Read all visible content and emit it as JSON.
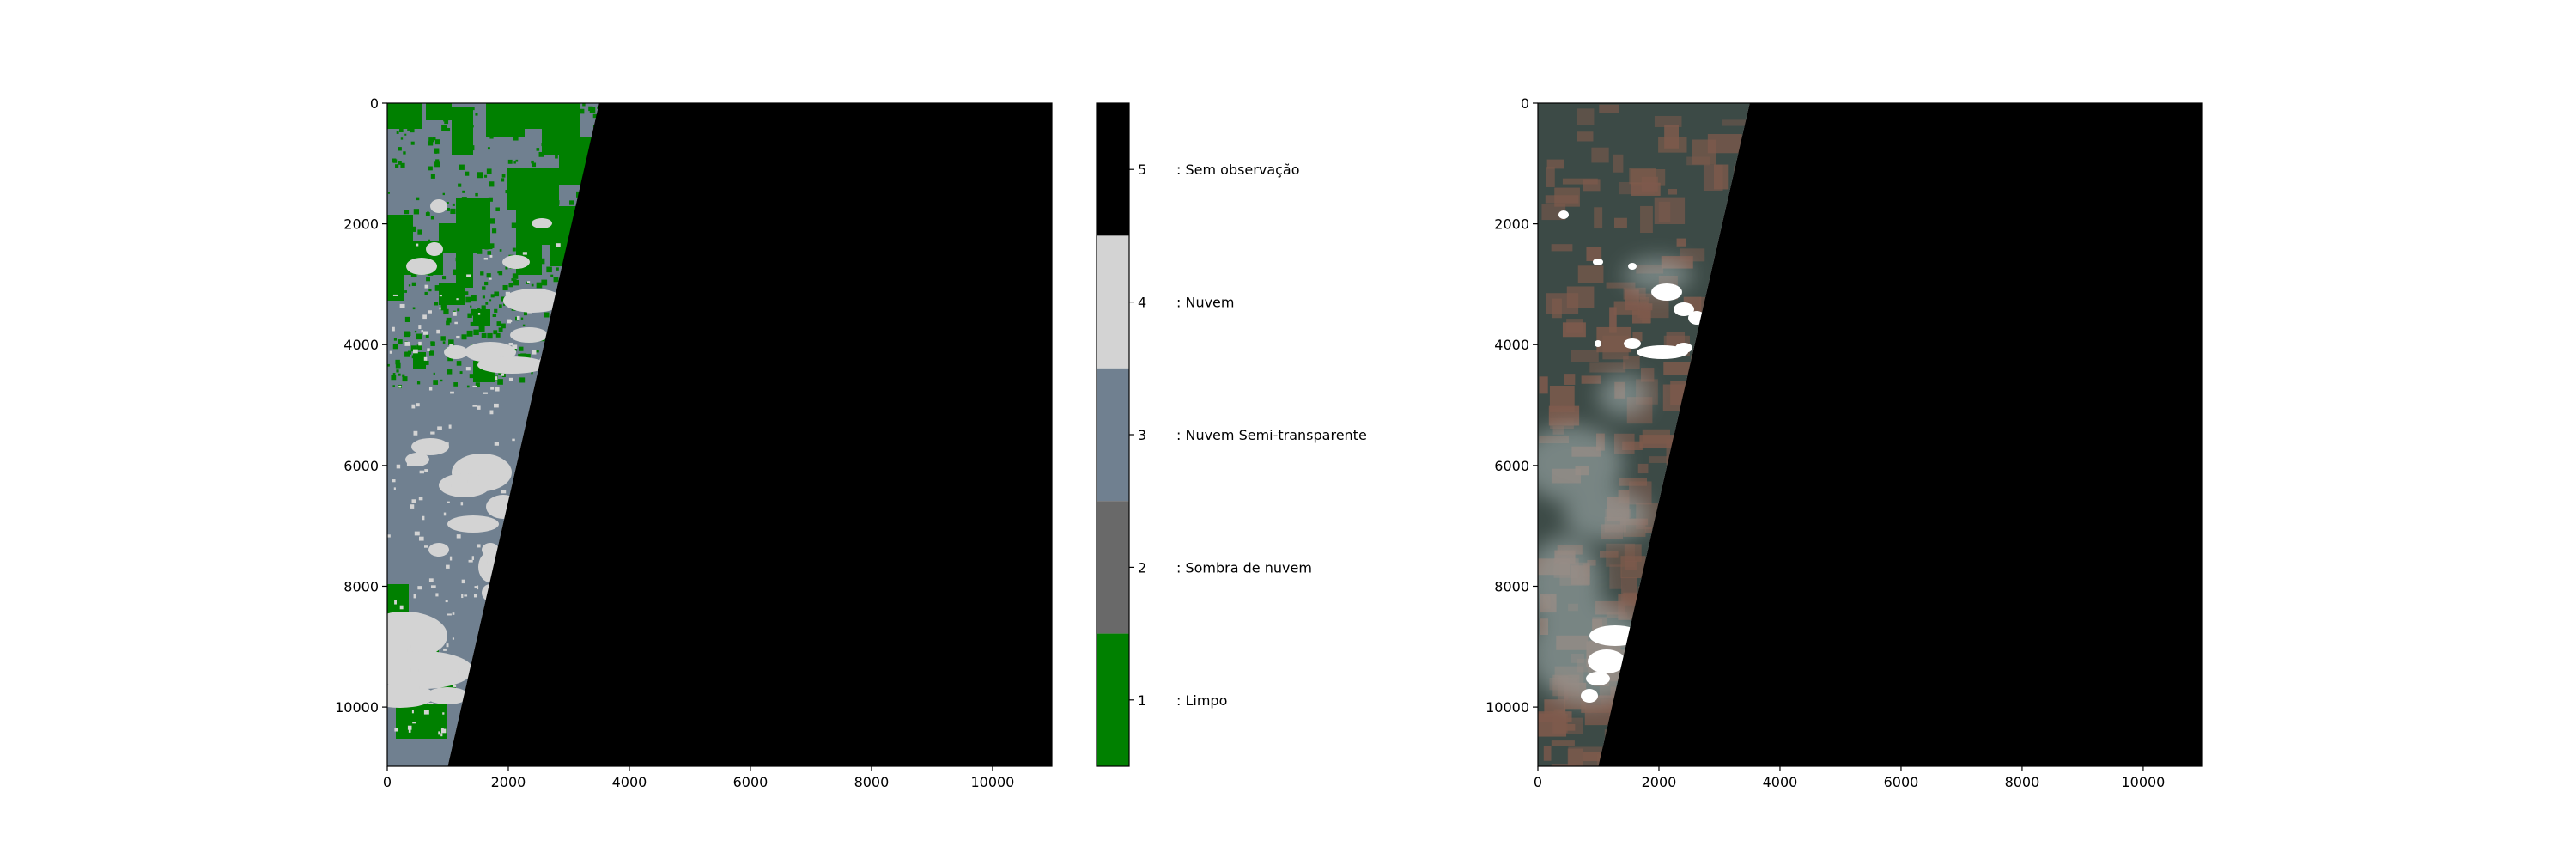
{
  "colors": {
    "no_observation": "#000000",
    "cloud": "#d3d3d3",
    "semi_transparent_cloud": "#708090",
    "cloud_shadow": "#696969",
    "clear": "#008000",
    "rgb_forest": "#3c4a46",
    "rgb_cleared": "#7e5a4c",
    "rgb_haze": "#a9b6b6",
    "rgb_cloud": "#ffffff"
  },
  "chart_data": [
    {
      "type": "heatmap",
      "title": "",
      "xlabel": "",
      "ylabel": "",
      "xlim": [
        0,
        10980
      ],
      "ylim": [
        10980,
        0
      ],
      "x_ticks": [
        0,
        2000,
        4000,
        6000,
        8000,
        10000
      ],
      "y_ticks": [
        0,
        2000,
        4000,
        6000,
        8000,
        10000
      ],
      "valid_data_edge": {
        "x_at_top": 3500,
        "x_at_bottom": 1000
      },
      "description_classes": [
        1,
        2,
        3,
        4,
        5
      ]
    },
    {
      "type": "colorbar",
      "range": [
        0.5,
        5.5
      ],
      "ticks": [
        1,
        2,
        3,
        4,
        5
      ],
      "legend": [
        {
          "value": 5,
          "label": ": Sem observação",
          "color_key": "no_observation"
        },
        {
          "value": 4,
          "label": ": Nuvem",
          "color_key": "cloud"
        },
        {
          "value": 3,
          "label": ": Nuvem Semi-transparente",
          "color_key": "semi_transparent_cloud"
        },
        {
          "value": 2,
          "label": ": Sombra de nuvem",
          "color_key": "cloud_shadow"
        },
        {
          "value": 1,
          "label": ": Limpo",
          "color_key": "clear"
        }
      ]
    },
    {
      "type": "heatmap",
      "title": "",
      "xlabel": "",
      "ylabel": "",
      "xlim": [
        0,
        10980
      ],
      "ylim": [
        10980,
        0
      ],
      "x_ticks": [
        0,
        2000,
        4000,
        6000,
        8000,
        10000
      ],
      "y_ticks": [
        0,
        2000,
        4000,
        6000,
        8000,
        10000
      ],
      "valid_data_edge": {
        "x_at_top": 3500,
        "x_at_bottom": 1000
      }
    }
  ]
}
